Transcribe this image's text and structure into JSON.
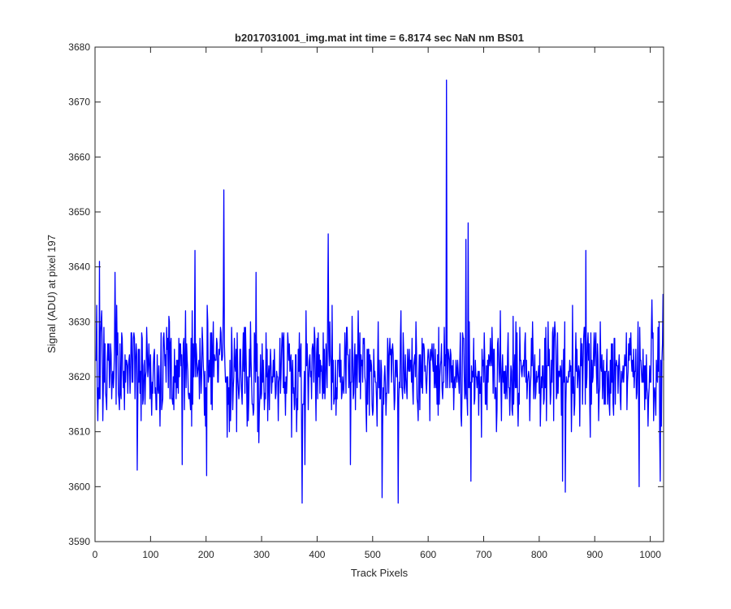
{
  "chart_data": {
    "type": "line",
    "title": "b2017031001_img.mat int time = 6.8174 sec  NaN nm BS01",
    "xlabel": "Track Pixels",
    "ylabel": "Signal (ADU) at pixel 197",
    "xlim": [
      0,
      1024
    ],
    "ylim": [
      3590,
      3680
    ],
    "x_ticks": [
      "0",
      "100",
      "200",
      "300",
      "400",
      "500",
      "600",
      "700",
      "800",
      "900",
      "1000"
    ],
    "y_ticks": [
      "3590",
      "3600",
      "3610",
      "3620",
      "3630",
      "3640",
      "3650",
      "3660",
      "3670",
      "3680"
    ],
    "grid": false,
    "legend": "none",
    "series": [
      {
        "color": "#0000ff",
        "x_start": 1,
        "x_step": 1,
        "n_points": 1024,
        "baseline_mean": 3621,
        "noise_range": [
          3603,
          3640
        ],
        "extrema": [
          {
            "x": 3,
            "y": 3633
          },
          {
            "x": 5,
            "y": 3612
          },
          {
            "x": 8,
            "y": 3641
          },
          {
            "x": 12,
            "y": 3632
          },
          {
            "x": 36,
            "y": 3639
          },
          {
            "x": 76,
            "y": 3603
          },
          {
            "x": 157,
            "y": 3604
          },
          {
            "x": 180,
            "y": 3643
          },
          {
            "x": 201,
            "y": 3602
          },
          {
            "x": 232,
            "y": 3654
          },
          {
            "x": 238,
            "y": 3609
          },
          {
            "x": 290,
            "y": 3639
          },
          {
            "x": 295,
            "y": 3608
          },
          {
            "x": 373,
            "y": 3597
          },
          {
            "x": 378,
            "y": 3604
          },
          {
            "x": 420,
            "y": 3646
          },
          {
            "x": 460,
            "y": 3604
          },
          {
            "x": 517,
            "y": 3598
          },
          {
            "x": 546,
            "y": 3597
          },
          {
            "x": 633,
            "y": 3674
          },
          {
            "x": 660,
            "y": 3611
          },
          {
            "x": 668,
            "y": 3645
          },
          {
            "x": 672,
            "y": 3648
          },
          {
            "x": 677,
            "y": 3601
          },
          {
            "x": 842,
            "y": 3601
          },
          {
            "x": 847,
            "y": 3599
          },
          {
            "x": 884,
            "y": 3643
          },
          {
            "x": 980,
            "y": 3600
          },
          {
            "x": 1003,
            "y": 3634
          },
          {
            "x": 1018,
            "y": 3601
          },
          {
            "x": 1023,
            "y": 3635
          }
        ]
      }
    ]
  }
}
